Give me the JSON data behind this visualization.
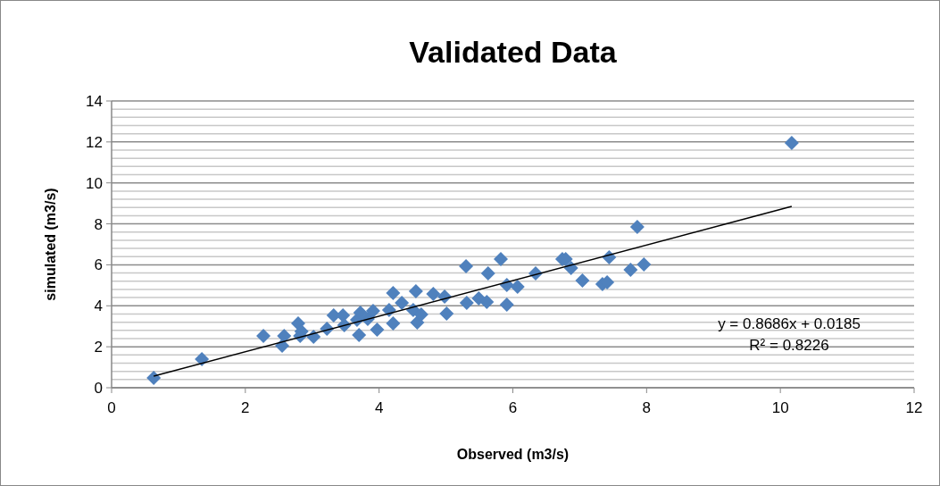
{
  "chart_data": {
    "type": "scatter",
    "title": "Validated Data",
    "xlabel": "Observed (m3/s)",
    "ylabel": "simulated (m3/s)",
    "xlim": [
      0,
      12
    ],
    "xticks": [
      0,
      2,
      4,
      6,
      8,
      10,
      12
    ],
    "ylim": [
      0,
      14
    ],
    "yticks": [
      0,
      {
        "value": 0.4,
        "label": null
      },
      {
        "value": 0.8,
        "label": null
      },
      {
        "value": 1.2,
        "label": null
      },
      {
        "value": 1.6,
        "label": null
      },
      2,
      {
        "value": 2.4,
        "label": null
      },
      {
        "value": 2.8,
        "label": null
      },
      {
        "value": 3.2,
        "label": null
      },
      {
        "value": 3.6,
        "label": null
      },
      4,
      {
        "value": 4.4,
        "label": null
      },
      {
        "value": 4.8,
        "label": null
      },
      {
        "value": 5.2,
        "label": null
      },
      {
        "value": 5.6,
        "label": null
      },
      6,
      {
        "value": 6.4,
        "label": null
      },
      {
        "value": 6.8,
        "label": null
      },
      {
        "value": 7.2,
        "label": null
      },
      {
        "value": 7.6,
        "label": null
      },
      8,
      {
        "value": 8.4,
        "label": null
      },
      {
        "value": 8.8,
        "label": null
      },
      {
        "value": 9.2,
        "label": null
      },
      {
        "value": 9.6,
        "label": null
      },
      10,
      {
        "value": 10.4,
        "label": null
      },
      {
        "value": 10.8,
        "label": null
      },
      {
        "value": 11.2,
        "label": null
      },
      {
        "value": 11.6,
        "label": null
      },
      12,
      {
        "value": 12.4,
        "label": null
      },
      {
        "value": 12.8,
        "label": null
      },
      {
        "value": 13.2,
        "label": null
      },
      {
        "value": 13.6,
        "label": null
      },
      14
    ],
    "grid": "y",
    "marker": "diamond",
    "series": [
      {
        "type": "scatter",
        "color": "#4f81bd",
        "x": [
          0.63,
          1.35,
          2.27,
          2.55,
          2.58,
          2.79,
          2.82,
          2.84,
          3.02,
          3.22,
          3.32,
          3.46,
          3.48,
          3.67,
          3.7,
          3.72,
          3.83,
          3.91,
          3.97,
          4.15,
          4.21,
          4.21,
          4.34,
          4.55,
          4.51,
          4.57,
          4.63,
          4.81,
          4.98,
          5.01,
          5.3,
          5.31,
          5.49,
          5.61,
          5.63,
          5.82,
          5.91,
          5.91,
          6.07,
          6.34,
          6.74,
          6.79,
          6.87,
          7.04,
          7.34,
          7.41,
          7.44,
          7.76,
          7.86,
          7.96,
          10.17
        ],
        "values": [
          0.48,
          1.4,
          2.53,
          2.05,
          2.53,
          3.14,
          2.53,
          2.75,
          2.49,
          2.88,
          3.53,
          3.53,
          3.05,
          3.31,
          2.57,
          3.66,
          3.36,
          3.75,
          2.83,
          3.79,
          3.14,
          4.62,
          4.14,
          4.71,
          3.79,
          3.18,
          3.58,
          4.58,
          4.45,
          3.62,
          5.93,
          4.14,
          4.36,
          4.19,
          5.58,
          6.28,
          5.02,
          4.06,
          4.93,
          5.58,
          6.28,
          6.28,
          5.84,
          5.23,
          5.06,
          5.15,
          6.37,
          5.76,
          7.85,
          6.02,
          11.95
        ]
      },
      {
        "type": "line",
        "color": "#000000",
        "marker": "none",
        "x": [
          0.63,
          10.17
        ],
        "values": [
          0.57,
          8.85
        ]
      }
    ],
    "annotations": [
      "y = 0.8686x + 0.0185",
      "R² = 0.8226"
    ]
  }
}
